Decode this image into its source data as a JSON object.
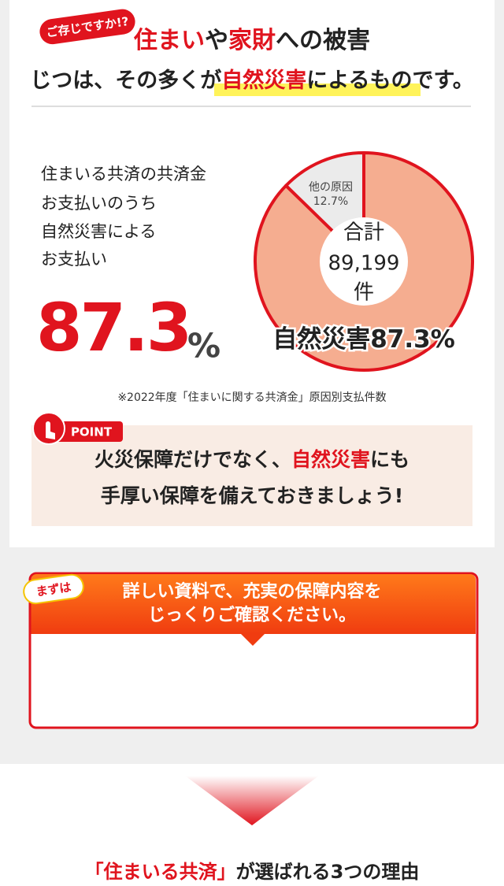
{
  "header": {
    "badge": "ご存じですか!?",
    "line1": [
      "住まい",
      "や",
      "家財",
      "への被害"
    ],
    "line2": [
      "じつは、その多くが",
      "自然災害",
      "によるものです。"
    ]
  },
  "summary": {
    "lines": [
      "住まいる共済の共済金",
      "お支払いのうち",
      "自然災害による",
      "お支払い"
    ],
    "figure": "87.3",
    "unit": "%"
  },
  "chart_data": {
    "type": "pie",
    "categories": [
      "自然災害",
      "他の原因"
    ],
    "values": [
      87.3,
      12.7
    ],
    "value_labels": [
      "87.3%",
      "12.7%"
    ],
    "colors": [
      "#f5ad90",
      "#ebebeb"
    ],
    "center_label": [
      "合計",
      "89,199",
      "件"
    ]
  },
  "footnote": "※2022年度「住まいに関する共済金」原因別支払件数",
  "point": {
    "tag": "POINT",
    "line1": [
      "火災保障だけでなく、",
      "自然災害",
      "にも"
    ],
    "line2": "手厚い保障を備えておきましょう!"
  },
  "cta": {
    "badge": "まずは",
    "lines": [
      "詳しい資料で、充実の保障内容を",
      "じっくりご確認ください。"
    ]
  },
  "next": [
    "「住まいる共済」",
    "が選ばれる3つの理由"
  ]
}
